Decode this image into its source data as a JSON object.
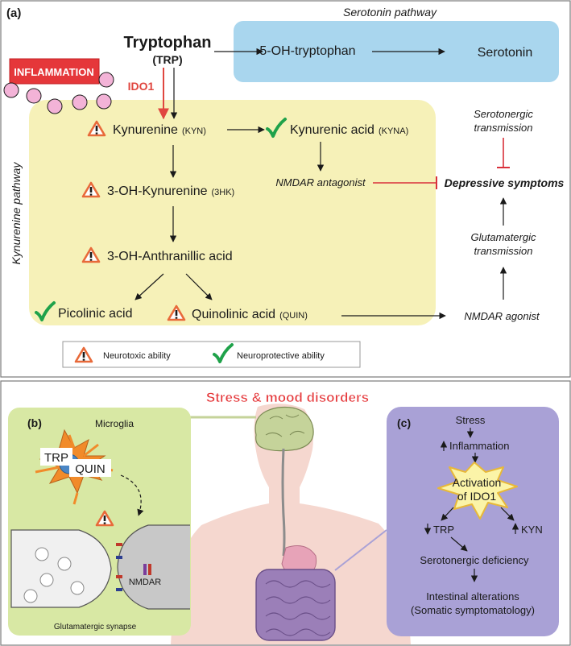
{
  "panel_a": {
    "label": "(a)",
    "serotonin_pathway_title": "Serotonin pathway",
    "tryptophan": "Tryptophan",
    "trp_abbrev": "(TRP)",
    "five_oh_tryptophan": "5-OH-tryptophan",
    "serotonin": "Serotonin",
    "inflammation": "INFLAMMATION",
    "ido1": "IDO1",
    "kynurenine_pathway_title": "Kynurenine pathway",
    "kynurenine": "Kynurenine",
    "kyn_abbrev": "(KYN)",
    "kynurenic_acid": "Kynurenic acid",
    "kyna_abbrev": "(KYNA)",
    "nmdar_antagonist": "NMDAR antagonist",
    "hydroxy_kynurenine": "3-OH-Kynurenine",
    "hk_abbrev": "(3HK)",
    "anthranillic_acid": "3-OH-Anthranillic acid",
    "picolinic_acid": "Picolinic acid",
    "quinolinic_acid": "Quinolinic acid",
    "quin_abbrev": "(QUIN)",
    "nmdar_agonist": "NMDAR agonist",
    "serotonergic_line1": "Serotonergic",
    "serotonergic_line2": "transmission",
    "depressive_symptoms": "Depressive symptoms",
    "glutamatergic_line1": "Glutamatergic",
    "glutamatergic_line2": "transmission",
    "legend_neurotoxic": "Neurotoxic ability",
    "legend_neuroprotective": "Neuroprotective ability",
    "colors": {
      "serotonin_box": "#a9d6ee",
      "kynurenine_box": "#f6f1b8",
      "inflammation_red": "#e5373a",
      "ido1_red": "#e0463f",
      "check_green": "#1fa24a",
      "warning_orange": "#e86a3a",
      "inhibit_red": "#d9303b"
    }
  },
  "panel_b": {
    "label": "(b)",
    "microglia": "Microglia",
    "trp": "TRP",
    "quin": "QUIN",
    "nmdar": "NMDAR",
    "synapse": "Glutamatergic synapse",
    "colors": {
      "background": "#d8e8a4",
      "microglia": "#f18b2a"
    }
  },
  "panel_c": {
    "label": "(c)",
    "stress": "Stress",
    "inflammation": "Inflammation",
    "activation_line1": "Activation",
    "activation_line2": "of IDO1",
    "trp": "TRP",
    "kyn": "KYN",
    "serotonergic_deficiency": "Serotonergic deficiency",
    "intestinal_line1": "Intestinal alterations",
    "intestinal_line2": "(Somatic symptomatology)",
    "colors": {
      "background": "#a9a1d6",
      "burst": "#fbf4a8"
    }
  },
  "bottom_title": "Stress & mood disorders"
}
